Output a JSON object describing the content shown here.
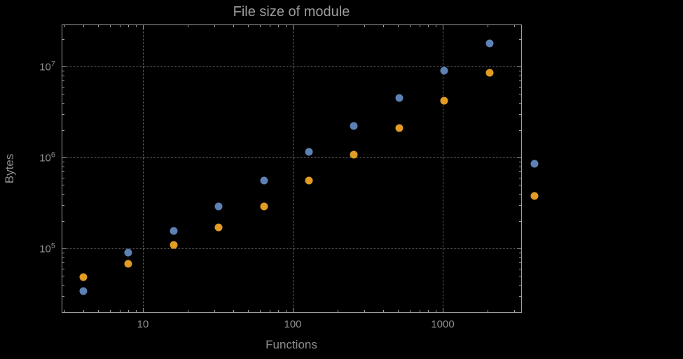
{
  "chart_data": {
    "type": "scatter",
    "title": "File size of module",
    "xlabel": "Functions",
    "ylabel": "Bytes",
    "x_scale": "log",
    "y_scale": "log",
    "x_range": [
      2.9,
      3350
    ],
    "y_range": [
      20000,
      29000000
    ],
    "grid": "dotted lines at each decade",
    "legend": "none",
    "background_color": "#000000",
    "frame_color": "#9e9e9e",
    "text_color": "#8f8f8f",
    "x": [
      4,
      8,
      16,
      32,
      64,
      128,
      256,
      512,
      1024,
      2048,
      4096
    ],
    "series": [
      {
        "name": "series-blue",
        "color": "#5E81B5",
        "values": [
          34000,
          90000,
          155000,
          290000,
          560000,
          1150000,
          2200000,
          4500000,
          9000000,
          18000000,
          850000
        ]
      },
      {
        "name": "series-orange",
        "color": "#E19C24",
        "values": [
          48000,
          68000,
          110000,
          170000,
          290000,
          560000,
          1080000,
          2100000,
          4200000,
          8500000,
          380000
        ]
      }
    ],
    "x_ticks": [
      {
        "value": 10,
        "label": "10"
      },
      {
        "value": 100,
        "label": "100"
      },
      {
        "value": 1000,
        "label": "1000"
      }
    ],
    "y_ticks": [
      {
        "value": 100000,
        "exp": 5
      },
      {
        "value": 1000000,
        "exp": 6
      },
      {
        "value": 10000000,
        "exp": 7
      }
    ]
  }
}
